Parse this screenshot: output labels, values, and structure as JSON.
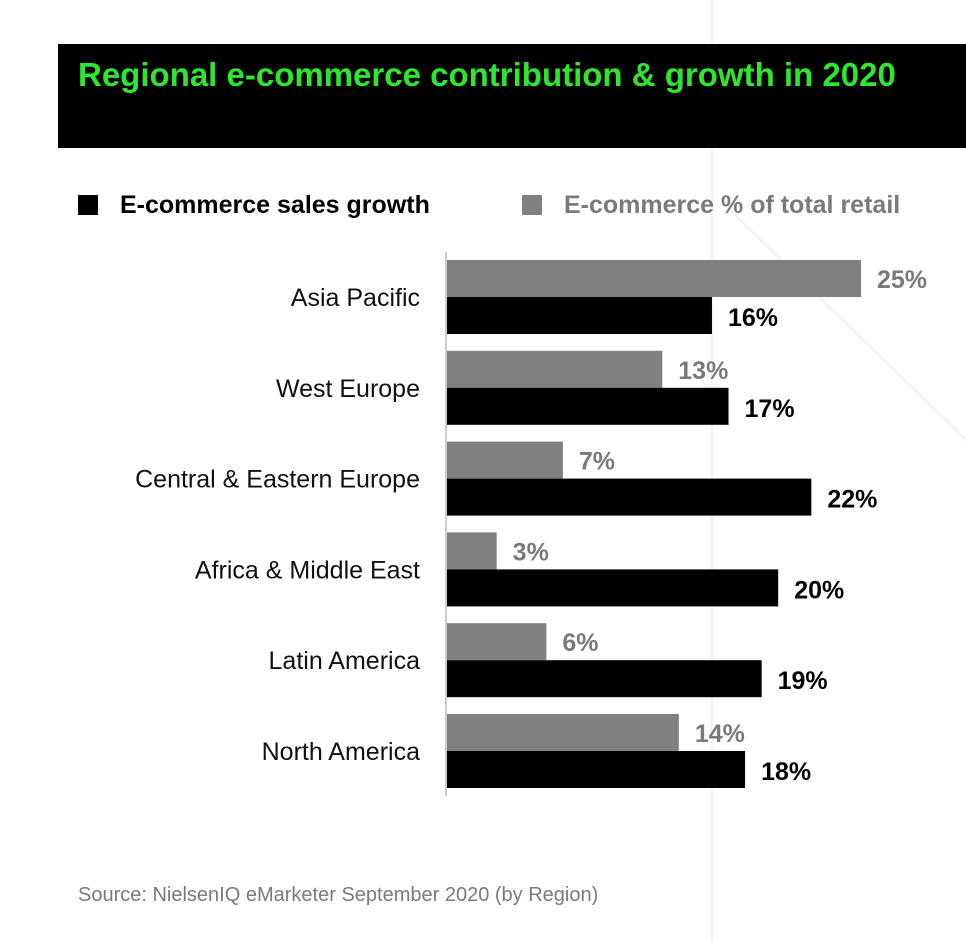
{
  "title": "Regional e-commerce contribution & growth in 2020",
  "legend": [
    {
      "label": "E-commerce sales growth",
      "color": "#000000"
    },
    {
      "label": "E-commerce % of total retail",
      "color": "#808080"
    }
  ],
  "source": "Source: NielsenIQ eMarketer September 2020 (by Region)",
  "colors": {
    "title_text": "#2ee62e",
    "title_bg": "#000000",
    "growth": "#000000",
    "share": "#808080",
    "share_label": "#7a7a7a"
  },
  "chart_data": {
    "type": "bar",
    "orientation": "horizontal",
    "title": "Regional e-commerce contribution & growth in 2020",
    "xlabel": "",
    "ylabel": "",
    "unit": "%",
    "xlim": [
      0,
      25
    ],
    "grid": false,
    "legend_position": "top",
    "categories": [
      "Asia Pacific",
      "West Europe",
      "Central & Eastern Europe",
      "Africa & Middle East",
      "Latin America",
      "North America"
    ],
    "series": [
      {
        "name": "E-commerce % of total retail",
        "values": [
          25,
          13,
          7,
          3,
          6,
          14
        ],
        "labels": [
          "25%",
          "13%",
          "7%",
          "3%",
          "6%",
          "14%"
        ]
      },
      {
        "name": "E-commerce sales growth",
        "values": [
          16,
          17,
          22,
          20,
          19,
          18
        ],
        "labels": [
          "16%",
          "17%",
          "22%",
          "20%",
          "19%",
          "18%"
        ]
      }
    ]
  }
}
